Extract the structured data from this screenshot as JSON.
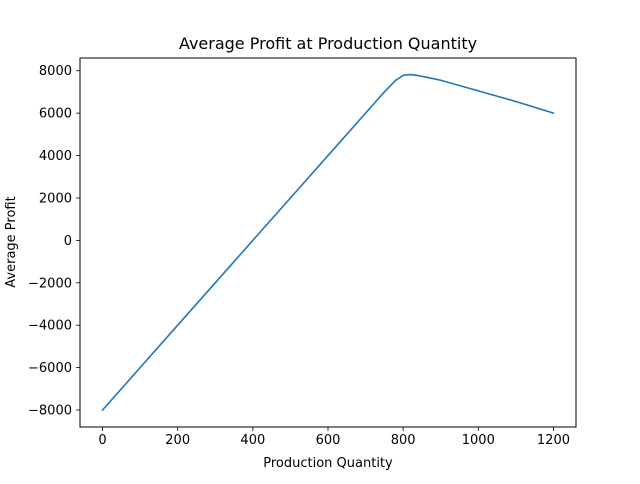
{
  "chart_data": {
    "type": "line",
    "title": "Average Profit at Production Quantity",
    "xlabel": "Production Quantity",
    "ylabel": "Average Profit",
    "xlim": [
      -60,
      1260
    ],
    "ylim": [
      -8800,
      8600
    ],
    "xticks": [
      0,
      200,
      400,
      600,
      800,
      1000,
      1200
    ],
    "xtick_labels": [
      "0",
      "200",
      "400",
      "600",
      "800",
      "1000",
      "1200"
    ],
    "yticks": [
      -8000,
      -6000,
      -4000,
      -2000,
      0,
      2000,
      4000,
      6000,
      8000
    ],
    "ytick_labels": [
      "−8000",
      "−6000",
      "−4000",
      "−2000",
      "0",
      "2000",
      "4000",
      "6000",
      "8000"
    ],
    "grid": false,
    "series": [
      {
        "color": "#1f77b4",
        "x": [
          0,
          100,
          200,
          300,
          400,
          500,
          600,
          700,
          750,
          780,
          800,
          820,
          840,
          860,
          900,
          1000,
          1100,
          1200
        ],
        "y": [
          -8000,
          -6000,
          -4000,
          -2000,
          0,
          2000,
          4000,
          6000,
          7000,
          7550,
          7780,
          7820,
          7770,
          7700,
          7550,
          7050,
          6550,
          6000
        ]
      }
    ]
  }
}
